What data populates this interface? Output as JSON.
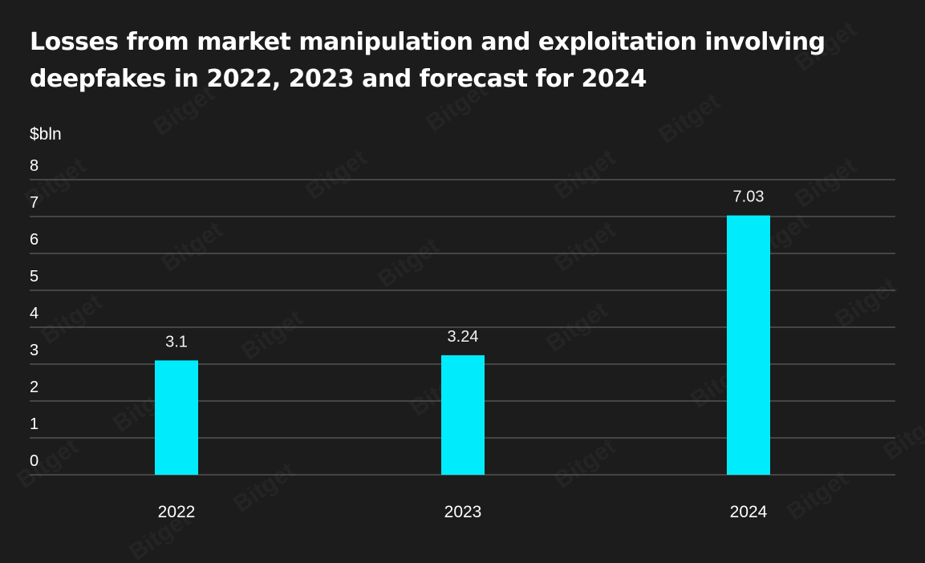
{
  "chart_data": {
    "type": "bar",
    "title": "Losses from market manipulation and exploitation involving deepfakes in 2022, 2023 and forecast for 2024",
    "ylabel": "$bln",
    "xlabel": "",
    "categories": [
      "2022",
      "2023",
      "2024"
    ],
    "values": [
      3.1,
      3.24,
      7.03
    ],
    "value_labels": [
      "3.1",
      "3.24",
      "7.03"
    ],
    "ylim": [
      0,
      8
    ],
    "yticks": [
      0,
      1,
      2,
      3,
      4,
      5,
      6,
      7,
      8
    ],
    "grid": true,
    "legend": "none",
    "bar_color": "#00ecfc",
    "background_color": "#1c1c1c",
    "gridline_color": "#6e6e6e"
  },
  "watermark": {
    "text": "Bitget",
    "color": "#ffffff"
  }
}
